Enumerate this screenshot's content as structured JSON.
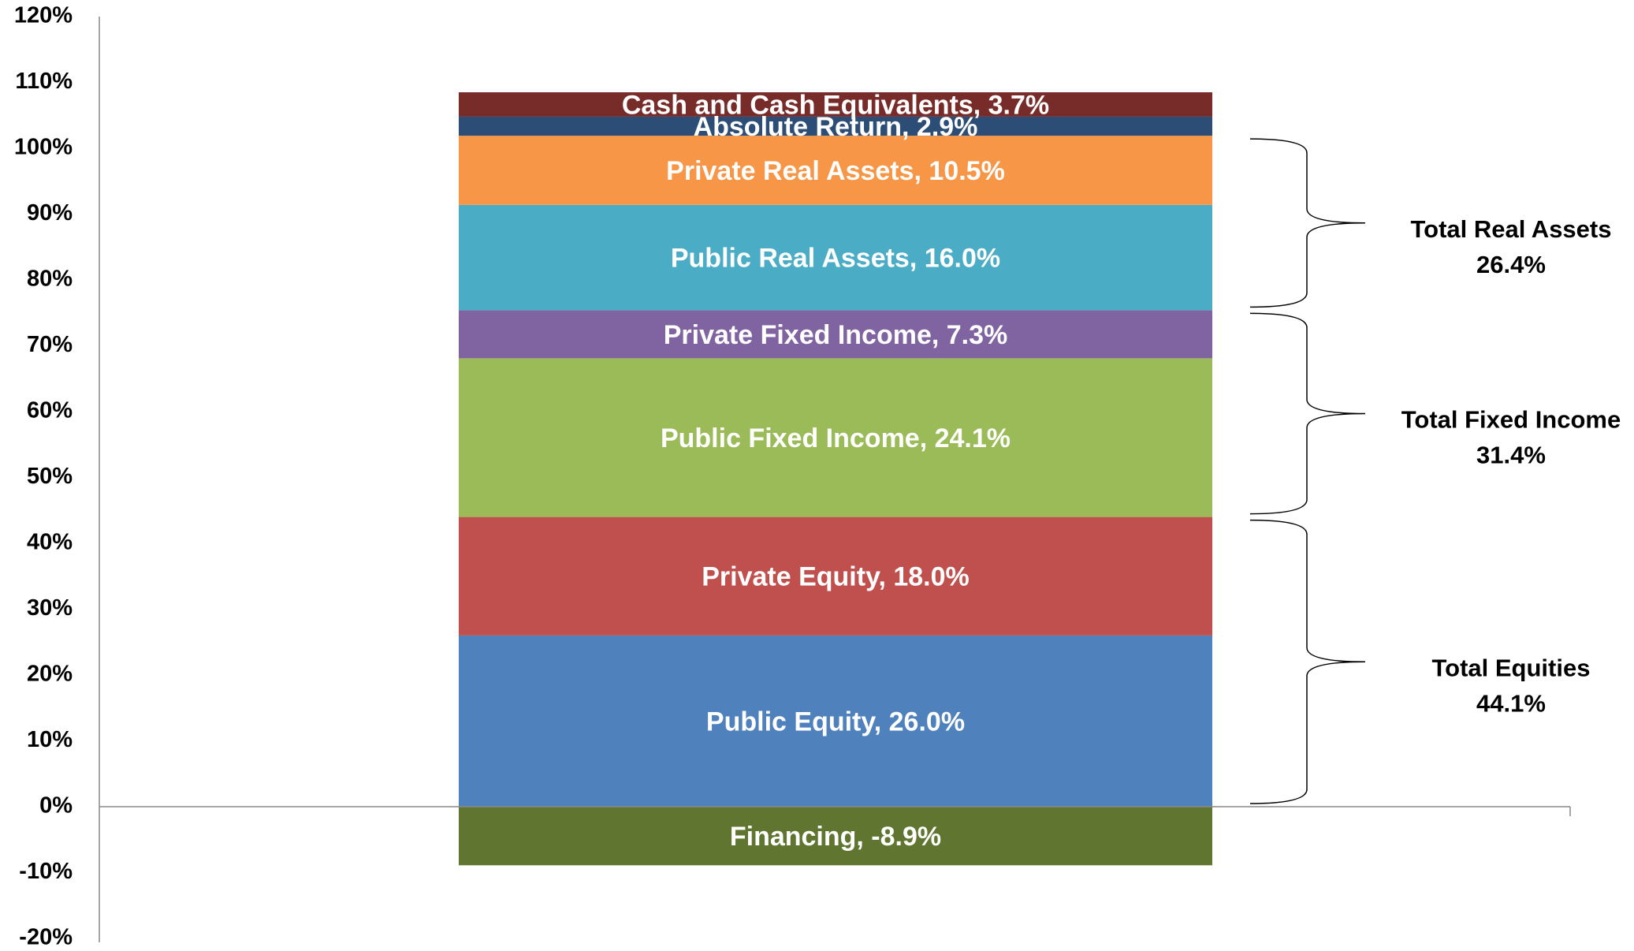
{
  "chart_data": {
    "type": "stacked_bar",
    "series": [
      {
        "name": "Public Equity",
        "color": "#4f81bd",
        "values": [
          26.0
        ],
        "value_labels": [
          "Public Equity, 26.0%"
        ]
      },
      {
        "name": "Private Equity",
        "color": "#c0504d",
        "values": [
          18.0
        ],
        "value_labels": [
          "Private Equity, 18.0%"
        ]
      },
      {
        "name": "Public Fixed Income",
        "color": "#9bbb59",
        "values": [
          24.1
        ],
        "value_labels": [
          "Public Fixed Income, 24.1%"
        ]
      },
      {
        "name": "Private Fixed Income",
        "color": "#8064a2",
        "values": [
          7.3
        ],
        "value_labels": [
          "Private Fixed Income, 7.3%"
        ]
      },
      {
        "name": "Public Real Assets",
        "color": "#4bacc6",
        "values": [
          16.0
        ],
        "value_labels": [
          "Public Real Assets, 16.0%"
        ]
      },
      {
        "name": "Private Real Assets",
        "color": "#f79646",
        "values": [
          10.5
        ],
        "value_labels": [
          "Private Real Assets, 10.5%"
        ]
      },
      {
        "name": "Absolute Return",
        "color": "#2c4d75",
        "values": [
          2.9
        ],
        "value_labels": [
          "Absolute Return, 2.9%"
        ]
      },
      {
        "name": "Cash and Cash Equivalents",
        "color": "#772c2a",
        "values": [
          3.7
        ],
        "value_labels": [
          "Cash and Cash Equivalents, 3.7%"
        ]
      },
      {
        "name": "Financing",
        "color": "#5f7530",
        "values": [
          -8.9
        ],
        "value_labels": [
          "Financing, -8.9%"
        ]
      }
    ],
    "groups": [
      {
        "name": "Total Equities",
        "value": 44.1,
        "value_label": "44.1%"
      },
      {
        "name": "Total Fixed Income",
        "value": 31.4,
        "value_label": "31.4%"
      },
      {
        "name": "Total Real Assets",
        "value": 26.4,
        "value_label": "26.4%"
      }
    ],
    "ylim": [
      -20,
      120
    ],
    "yticks": [
      {
        "value": -20,
        "label": "-20%"
      },
      {
        "value": -10,
        "label": "-10%"
      },
      {
        "value": 0,
        "label": "0%"
      },
      {
        "value": 10,
        "label": "10%"
      },
      {
        "value": 20,
        "label": "20%"
      },
      {
        "value": 30,
        "label": "30%"
      },
      {
        "value": 40,
        "label": "40%"
      },
      {
        "value": 50,
        "label": "50%"
      },
      {
        "value": 60,
        "label": "60%"
      },
      {
        "value": 70,
        "label": "70%"
      },
      {
        "value": 80,
        "label": "80%"
      },
      {
        "value": 90,
        "label": "90%"
      },
      {
        "value": 100,
        "label": "100%"
      },
      {
        "value": 110,
        "label": "110%"
      },
      {
        "value": 120,
        "label": "120%"
      }
    ],
    "grid": false
  }
}
